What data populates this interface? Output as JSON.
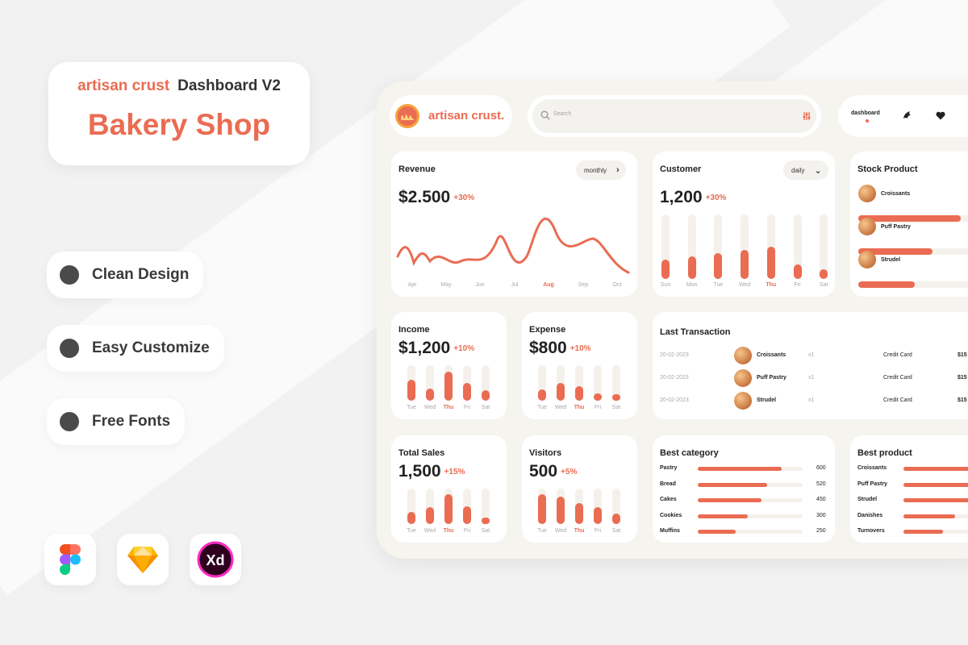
{
  "promo": {
    "brand": "artisan crust",
    "version": "Dashboard V2",
    "title": "Bakery Shop",
    "features": [
      "Clean Design",
      "Easy Customize",
      "Free Fonts"
    ],
    "tools": [
      "figma-icon",
      "sketch-icon",
      "xd-icon"
    ],
    "xd_label": "Xd"
  },
  "colors": {
    "accent": "#ea6c52",
    "panel": "#f6f4ef",
    "track": "#f4f1ec"
  },
  "header": {
    "logo_text": "artisan crust.",
    "search_placeholder": "Search",
    "nav": {
      "active_label": "dashboard",
      "icons": [
        "croissant-icon",
        "heart-icon"
      ]
    }
  },
  "revenue": {
    "title": "Revenue",
    "filter": "monthly",
    "value": "$2.500",
    "change": "+30%",
    "months": [
      "Apr",
      "May",
      "Jun",
      "Jul",
      "Aug",
      "Sep",
      "Oct"
    ],
    "active": "Aug"
  },
  "customer": {
    "title": "Customer",
    "filter": "daily",
    "value": "1,200",
    "change": "+30%",
    "days": [
      "Sun",
      "Mon",
      "Tue",
      "Wed",
      "Thu",
      "Fri",
      "Sat"
    ],
    "active": "Thu",
    "levels": [
      0.3,
      0.35,
      0.4,
      0.45,
      0.5,
      0.22,
      0.15
    ]
  },
  "stock": {
    "title": "Stock Product",
    "items": [
      {
        "name": "Croissants",
        "level": 0.72
      },
      {
        "name": "Puff Pastry",
        "level": 0.52
      },
      {
        "name": "Strudel",
        "level": 0.4
      }
    ]
  },
  "income": {
    "title": "Income",
    "value": "$1,200",
    "change": "+10%",
    "days": [
      "Tue",
      "Wed",
      "Thu",
      "Fri",
      "Sat"
    ],
    "active": "Thu",
    "levels": [
      0.6,
      0.35,
      0.82,
      0.5,
      0.3
    ]
  },
  "expense": {
    "title": "Expense",
    "value": "$800",
    "change": "+10%",
    "days": [
      "Tue",
      "Wed",
      "Thu",
      "Fri",
      "Sat"
    ],
    "active": "Thu",
    "levels": [
      0.32,
      0.5,
      0.4,
      0.2,
      0.18
    ]
  },
  "transactions": {
    "title": "Last Transaction",
    "rows": [
      {
        "date": "20-02-2023",
        "product": "Croissants",
        "qty": "x1",
        "method": "Credit Card",
        "amount": "$15"
      },
      {
        "date": "20-02-2023",
        "product": "Puff Pastry",
        "qty": "x1",
        "method": "Credit Card",
        "amount": "$15"
      },
      {
        "date": "20-02-2023",
        "product": "Strudel",
        "qty": "x1",
        "method": "Credit Card",
        "amount": "$15"
      }
    ]
  },
  "total_sales": {
    "title": "Total Sales",
    "value": "1,500",
    "change": "+15%",
    "days": [
      "Tue",
      "Wed",
      "Thu",
      "Fri",
      "Sat"
    ],
    "active": "Thu",
    "levels": [
      0.35,
      0.48,
      0.85,
      0.5,
      0.18
    ]
  },
  "visitors": {
    "title": "Visitors",
    "value": "500",
    "change": "+5%",
    "days": [
      "Tue",
      "Wed",
      "Thu",
      "Fri",
      "Sat"
    ],
    "active": "Thu",
    "levels": [
      0.85,
      0.78,
      0.6,
      0.48,
      0.3
    ]
  },
  "best_category": {
    "title": "Best category",
    "items": [
      {
        "name": "Pastry",
        "value": "600",
        "ratio": 0.8
      },
      {
        "name": "Bread",
        "value": "520",
        "ratio": 0.66
      },
      {
        "name": "Cakes",
        "value": "450",
        "ratio": 0.61
      },
      {
        "name": "Cookies",
        "value": "300",
        "ratio": 0.48
      },
      {
        "name": "Muffins",
        "value": "250",
        "ratio": 0.36
      }
    ]
  },
  "best_product": {
    "title": "Best product",
    "items": [
      {
        "name": "Croissants",
        "ratio": 0.85
      },
      {
        "name": "Puff Pastry",
        "ratio": 0.78
      },
      {
        "name": "Strudel",
        "ratio": 0.68
      },
      {
        "name": "Danishes",
        "ratio": 0.5
      },
      {
        "name": "Turnovers",
        "ratio": 0.38
      }
    ]
  }
}
